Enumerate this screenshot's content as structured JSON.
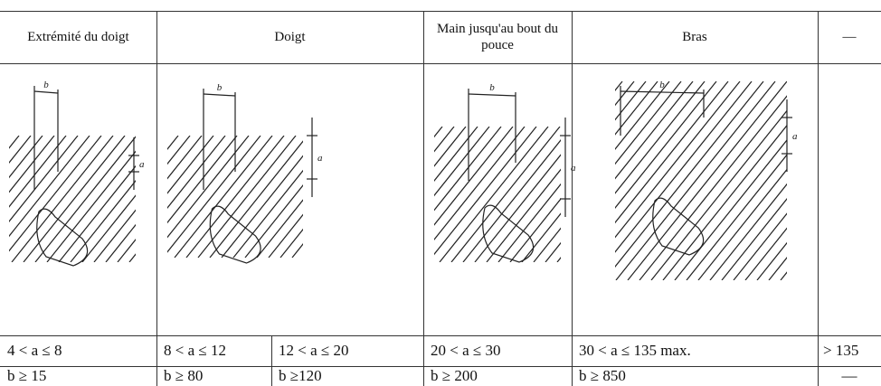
{
  "table": {
    "header": [
      "Extrémité du doigt",
      "Doigt",
      "Main jusqu'au bout du pouce",
      "Bras",
      "—"
    ],
    "rows": [
      [
        "4 < a ≤ 8",
        "8 < a ≤ 12",
        "12 < a ≤ 20",
        "20 < a ≤ 30",
        "30 < a ≤ 135 max.",
        "> 135"
      ],
      [
        "b ≥ 15",
        "b ≥ 80",
        "b ≥120",
        "b ≥ 200",
        "b ≥ 850",
        "—"
      ]
    ]
  },
  "figures": [
    {
      "a": "a",
      "b": "b"
    },
    {
      "a": "a",
      "b": "b"
    },
    {
      "a": "a",
      "b": "b"
    },
    {
      "a": "a",
      "b": "b"
    }
  ]
}
